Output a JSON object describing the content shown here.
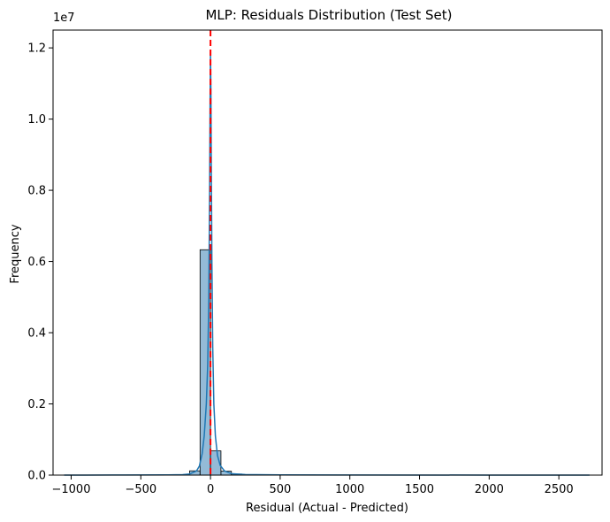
{
  "chart_data": {
    "type": "bar",
    "title": "MLP: Residuals Distribution (Test Set)",
    "xlabel": "Residual (Actual - Predicted)",
    "ylabel": "Frequency",
    "y_multiplier_label": "1e7",
    "y_multiplier": 10000000,
    "xlim": [
      -1130,
      2810
    ],
    "ylim": [
      0,
      1.25
    ],
    "x_ticks": [
      -1000,
      -500,
      0,
      500,
      1000,
      1500,
      2000,
      2500
    ],
    "x_tick_labels": [
      "−1000",
      "−500",
      "0",
      "500",
      "1000",
      "1500",
      "2000",
      "2500"
    ],
    "y_ticks": [
      0.0,
      0.2,
      0.4,
      0.6,
      0.8,
      1.0,
      1.2
    ],
    "y_tick_labels": [
      "0.0",
      "0.2",
      "0.4",
      "0.6",
      "0.8",
      "1.0",
      "1.2"
    ],
    "bin_width": 75,
    "bins": [
      {
        "x0": -1050,
        "x1": -975,
        "value": 0.0003
      },
      {
        "x0": -975,
        "x1": -900,
        "value": 0.0002
      },
      {
        "x0": -900,
        "x1": -825,
        "value": 0.0002
      },
      {
        "x0": -825,
        "x1": -750,
        "value": 0.0002
      },
      {
        "x0": -750,
        "x1": -675,
        "value": 0.0002
      },
      {
        "x0": -675,
        "x1": -600,
        "value": 0.0002
      },
      {
        "x0": -600,
        "x1": -525,
        "value": 0.0003
      },
      {
        "x0": -525,
        "x1": -450,
        "value": 0.0003
      },
      {
        "x0": -450,
        "x1": -375,
        "value": 0.0004
      },
      {
        "x0": -375,
        "x1": -300,
        "value": 0.0006
      },
      {
        "x0": -300,
        "x1": -225,
        "value": 0.0009
      },
      {
        "x0": -225,
        "x1": -150,
        "value": 0.0015
      },
      {
        "x0": -150,
        "x1": -75,
        "value": 0.012
      },
      {
        "x0": -75,
        "x1": 0,
        "value": 0.633
      },
      {
        "x0": 0,
        "x1": 75,
        "value": 0.068
      },
      {
        "x0": 75,
        "x1": 150,
        "value": 0.011
      },
      {
        "x0": 150,
        "x1": 225,
        "value": 0.003
      },
      {
        "x0": 225,
        "x1": 300,
        "value": 0.0015
      },
      {
        "x0": 300,
        "x1": 375,
        "value": 0.001
      },
      {
        "x0": 375,
        "x1": 450,
        "value": 0.0008
      },
      {
        "x0": 450,
        "x1": 525,
        "value": 0.0006
      },
      {
        "x0": 525,
        "x1": 600,
        "value": 0.0005
      },
      {
        "x0": 600,
        "x1": 675,
        "value": 0.0004
      },
      {
        "x0": 675,
        "x1": 750,
        "value": 0.0004
      },
      {
        "x0": 750,
        "x1": 825,
        "value": 0.0003
      },
      {
        "x0": 825,
        "x1": 900,
        "value": 0.0003
      },
      {
        "x0": 900,
        "x1": 975,
        "value": 0.0003
      },
      {
        "x0": 975,
        "x1": 1050,
        "value": 0.0002
      },
      {
        "x0": 1050,
        "x1": 1125,
        "value": 0.0002
      },
      {
        "x0": 1125,
        "x1": 1200,
        "value": 0.0002
      },
      {
        "x0": 1200,
        "x1": 1275,
        "value": 0.0002
      },
      {
        "x0": 1275,
        "x1": 1350,
        "value": 0.0002
      },
      {
        "x0": 1350,
        "x1": 1425,
        "value": 0.0002
      },
      {
        "x0": 1425,
        "x1": 1500,
        "value": 0.0001
      },
      {
        "x0": 1500,
        "x1": 1575,
        "value": 0.0001
      },
      {
        "x0": 1575,
        "x1": 1650,
        "value": 0.0001
      },
      {
        "x0": 1650,
        "x1": 1725,
        "value": 0.0001
      },
      {
        "x0": 1725,
        "x1": 1800,
        "value": 0.0001
      },
      {
        "x0": 1800,
        "x1": 1875,
        "value": 0.0001
      },
      {
        "x0": 1875,
        "x1": 1950,
        "value": 0.0001
      },
      {
        "x0": 1950,
        "x1": 2025,
        "value": 0.0001
      },
      {
        "x0": 2025,
        "x1": 2100,
        "value": 0.0001
      },
      {
        "x0": 2100,
        "x1": 2175,
        "value": 0.0001
      },
      {
        "x0": 2175,
        "x1": 2250,
        "value": 0.0001
      },
      {
        "x0": 2250,
        "x1": 2325,
        "value": 0.0001
      },
      {
        "x0": 2325,
        "x1": 2400,
        "value": 0.0001
      },
      {
        "x0": 2400,
        "x1": 2475,
        "value": 0.0001
      },
      {
        "x0": 2475,
        "x1": 2550,
        "value": 0.0001
      },
      {
        "x0": 2550,
        "x1": 2625,
        "value": 0.0001
      },
      {
        "x0": 2625,
        "x1": 2700,
        "value": 0.0001
      }
    ],
    "kde": {
      "x": [
        -1050,
        -900,
        -600,
        -300,
        -200,
        -150,
        -100,
        -80,
        -60,
        -45,
        -30,
        -20,
        -12,
        -6,
        -3,
        0,
        3,
        6,
        10,
        16,
        24,
        35,
        50,
        70,
        100,
        150,
        250,
        500,
        1000,
        2000,
        2720
      ],
      "y": [
        0.0001,
        0.0001,
        0.0002,
        0.0006,
        0.0012,
        0.003,
        0.012,
        0.025,
        0.06,
        0.11,
        0.2,
        0.31,
        0.5,
        0.82,
        1.05,
        1.19,
        1.08,
        0.86,
        0.6,
        0.36,
        0.2,
        0.11,
        0.055,
        0.027,
        0.012,
        0.004,
        0.0015,
        0.0006,
        0.0003,
        0.0001,
        0.0001
      ]
    },
    "reference_line": {
      "x": 0,
      "color": "#ff0000",
      "style": "dashed"
    },
    "colors": {
      "bar_fill": "#4c8ebd",
      "bar_edge": "#000000",
      "kde_line": "#1f77b4"
    },
    "grid": false,
    "legend": "none"
  }
}
